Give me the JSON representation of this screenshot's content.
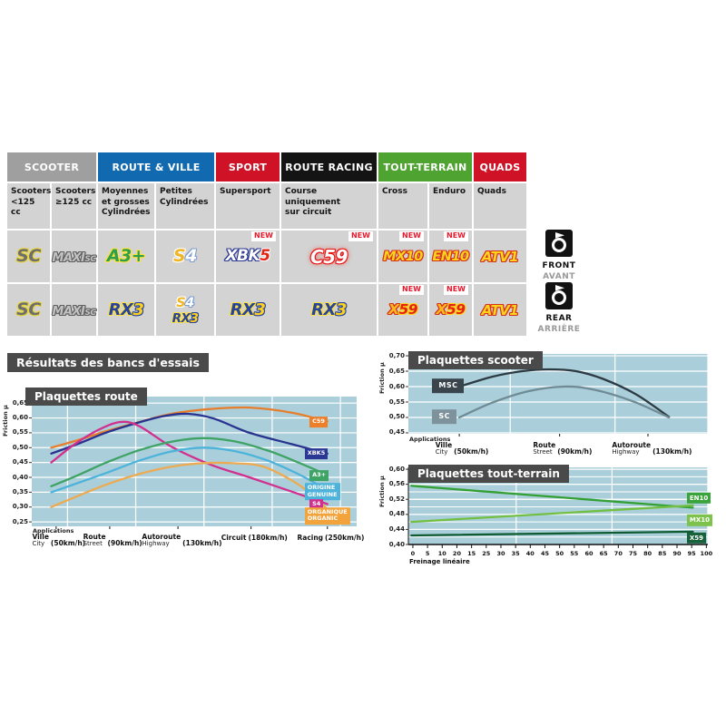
{
  "results_title": "Résultats des bancs d'essais",
  "side_labels": {
    "front": {
      "label": "FRONT",
      "sub": "AVANT"
    },
    "rear": {
      "label": "REAR",
      "sub": "ARRIÈRE"
    }
  },
  "table": {
    "new_label": "NEW",
    "categories": [
      {
        "label": "SCOOTER",
        "color": "#9f9f9f",
        "span": [
          0,
          1
        ]
      },
      {
        "label": "ROUTE & VILLE",
        "color": "#1169b0",
        "span": [
          2,
          3
        ]
      },
      {
        "label": "SPORT",
        "color": "#d01226",
        "span": [
          4
        ]
      },
      {
        "label": "ROUTE RACING",
        "color": "#141414",
        "span": [
          5
        ]
      },
      {
        "label": "TOUT-TERRAIN",
        "color": "#4ea331",
        "span": [
          6,
          7
        ]
      },
      {
        "label": "QUADS",
        "color": "#d01226",
        "span": [
          8
        ]
      }
    ],
    "subheaders": [
      "Scooters\n<125 cc",
      "Scooters\n≥125 cc",
      "Moyennes\net grosses\nCylindrées",
      "Petites\nCylindrées",
      "Supersport",
      "Course\nuniquement\nsur circuit",
      "Cross",
      "Enduro",
      "Quads"
    ],
    "badges": {
      "sc": {
        "parts": [
          {
            "t": "SC",
            "s": "sc"
          }
        ]
      },
      "maxisc": {
        "parts": [
          {
            "t": "MAXI",
            "s": "maxi"
          },
          {
            "t": "SC",
            "s": "maxi"
          }
        ]
      },
      "a3plus": {
        "parts": [
          {
            "t": "A3+",
            "s": "a3"
          }
        ]
      },
      "s4": {
        "parts": [
          {
            "t": "S",
            "s": "sgold"
          },
          {
            "t": "4",
            "s": "fourw"
          }
        ]
      },
      "xbk5": {
        "parts": [
          {
            "t": "XBK",
            "s": "wnavy"
          },
          {
            "t": "5",
            "s": "redw"
          }
        ]
      },
      "c59": {
        "parts": [
          {
            "t": "C59",
            "s": "wred"
          }
        ]
      },
      "mx10": {
        "parts": [
          {
            "t": "MX10",
            "s": "yr"
          }
        ]
      },
      "en10": {
        "parts": [
          {
            "t": "EN10",
            "s": "yr"
          }
        ]
      },
      "atv1": {
        "parts": [
          {
            "t": "ATV1",
            "s": "yr"
          }
        ]
      },
      "rx3": {
        "parts": [
          {
            "t": "RX",
            "s": "rxnavy"
          },
          {
            "t": "3",
            "s": "threey"
          }
        ]
      },
      "x59": {
        "parts": [
          {
            "t": "X",
            "s": "xy"
          },
          {
            "t": "59",
            "s": "fn"
          }
        ]
      }
    },
    "front_row": {
      "cells": [
        [
          "sc"
        ],
        [
          "maxisc"
        ],
        [
          "a3plus"
        ],
        [
          "s4"
        ],
        [
          "xbk5"
        ],
        [
          "c59"
        ],
        [
          "mx10"
        ],
        [
          "en10"
        ],
        [
          "atv1"
        ]
      ],
      "new": [
        false,
        false,
        false,
        false,
        true,
        true,
        true,
        true,
        false
      ]
    },
    "rear_row": {
      "cells": [
        [
          "sc"
        ],
        [
          "maxisc"
        ],
        [
          "rx3"
        ],
        [
          "s4",
          "rx3"
        ],
        [
          "rx3"
        ],
        [
          "rx3"
        ],
        [
          "x59"
        ],
        [
          "x59"
        ],
        [
          "atv1"
        ]
      ],
      "new": [
        false,
        false,
        false,
        false,
        false,
        false,
        true,
        true,
        false
      ]
    }
  },
  "chart_data": [
    {
      "id": "route",
      "type": "line",
      "title": "Plaquettes route",
      "ylabel": "Friction µ",
      "xlabel_header": "Applications",
      "plot_bg": "#abcfda",
      "ylim": [
        0.235,
        0.672
      ],
      "yticks": [
        {
          "v": 0.65,
          "label": "0,65"
        },
        {
          "v": 0.6,
          "label": "0,60"
        },
        {
          "v": 0.55,
          "label": "0,55"
        },
        {
          "v": 0.5,
          "label": "0,50"
        },
        {
          "v": 0.45,
          "label": "0,45"
        },
        {
          "v": 0.4,
          "label": "0,40"
        },
        {
          "v": 0.35,
          "label": "0,35"
        },
        {
          "v": 0.3,
          "label": "0,30"
        },
        {
          "v": 0.25,
          "label": "0,25"
        }
      ],
      "vgrid": [
        11,
        32,
        53,
        74,
        95
      ],
      "x_categories": [
        {
          "fr": "Ville",
          "en": "City",
          "speed": "(50km/h)",
          "x": 7.5
        },
        {
          "fr": "Route",
          "en": "Street",
          "speed": "(90km/h)",
          "x": 24
        },
        {
          "fr": "Autoroute",
          "en": "Highway",
          "speed": "(130km/h)",
          "x": 45
        },
        {
          "fr": "Circuit",
          "en": "",
          "speed": "(180km/h)",
          "x": 67.5
        },
        {
          "fr": "Racing",
          "en": "",
          "speed": "(250km/h)",
          "x": 91
        }
      ],
      "series": [
        {
          "name": "C59",
          "color": "#e67e2e",
          "points": [
            [
              6,
              0.5
            ],
            [
              15,
              0.528
            ],
            [
              23,
              0.556
            ],
            [
              33,
              0.586
            ],
            [
              43,
              0.614
            ],
            [
              55,
              0.63
            ],
            [
              67,
              0.635
            ],
            [
              80,
              0.618
            ],
            [
              91,
              0.588
            ]
          ]
        },
        {
          "name": "XBK5",
          "color": "#27338f",
          "points": [
            [
              6,
              0.48
            ],
            [
              15,
              0.516
            ],
            [
              23,
              0.551
            ],
            [
              33,
              0.585
            ],
            [
              41,
              0.607
            ],
            [
              48,
              0.614
            ],
            [
              56,
              0.598
            ],
            [
              67,
              0.55
            ],
            [
              80,
              0.512
            ],
            [
              91,
              0.48
            ]
          ]
        },
        {
          "name": "S4",
          "color": "#d1308f",
          "points": [
            [
              6,
              0.45
            ],
            [
              13,
              0.51
            ],
            [
              20,
              0.557
            ],
            [
              27,
              0.586
            ],
            [
              33,
              0.573
            ],
            [
              43,
              0.503
            ],
            [
              55,
              0.443
            ],
            [
              67,
              0.4
            ],
            [
              80,
              0.352
            ],
            [
              91,
              0.31
            ]
          ]
        },
        {
          "name": "A3+",
          "color": "#3fa366",
          "points": [
            [
              6,
              0.37
            ],
            [
              15,
              0.411
            ],
            [
              23,
              0.45
            ],
            [
              33,
              0.491
            ],
            [
              43,
              0.52
            ],
            [
              53,
              0.532
            ],
            [
              63,
              0.52
            ],
            [
              73,
              0.489
            ],
            [
              82,
              0.45
            ],
            [
              91,
              0.408
            ]
          ]
        },
        {
          "name": "ORIGINE GENUINE",
          "color": "#4db3da",
          "points": [
            [
              6,
              0.35
            ],
            [
              15,
              0.384
            ],
            [
              23,
              0.415
            ],
            [
              33,
              0.456
            ],
            [
              43,
              0.487
            ],
            [
              53,
              0.5
            ],
            [
              63,
              0.487
            ],
            [
              73,
              0.455
            ],
            [
              82,
              0.411
            ],
            [
              91,
              0.358
            ]
          ]
        },
        {
          "name": "ORGANIQUE ORGANIC",
          "color": "#edaa52",
          "points": [
            [
              6,
              0.3
            ],
            [
              15,
              0.341
            ],
            [
              23,
              0.376
            ],
            [
              33,
              0.411
            ],
            [
              43,
              0.436
            ],
            [
              53,
              0.448
            ],
            [
              63,
              0.447
            ],
            [
              71,
              0.437
            ],
            [
              80,
              0.39
            ],
            [
              86,
              0.344
            ],
            [
              91,
              0.292
            ]
          ]
        }
      ],
      "legend": [
        {
          "label": "C59",
          "color": "#ed7f2b",
          "x": 85.5,
          "v": 0.585
        },
        {
          "label": "XBK5",
          "color": "#2a3793",
          "x": 84,
          "v": 0.479
        },
        {
          "label": "A3+",
          "color": "#3fa366",
          "x": 85.5,
          "v": 0.406
        },
        {
          "label": "ORIGINE\nGENUINE",
          "color": "#4db3da",
          "x": 84,
          "v": 0.352
        },
        {
          "label": "S4",
          "color": "#d1308f",
          "x": 85.5,
          "v": 0.308
        },
        {
          "label": "ORGANIQUE\nORGANIC",
          "color": "#f2a33c",
          "x": 84,
          "v": 0.27
        }
      ]
    },
    {
      "id": "scooter",
      "type": "line",
      "title": "Plaquettes scooter",
      "ylabel": "Friction µ",
      "xlabel_header": "Applications",
      "plot_bg": "#abcfda",
      "ylim": [
        0.447,
        0.706
      ],
      "yticks": [
        {
          "v": 0.7,
          "label": "0,70"
        },
        {
          "v": 0.65,
          "label": "0,65"
        },
        {
          "v": 0.6,
          "label": "0,60"
        },
        {
          "v": 0.55,
          "label": "0,55"
        },
        {
          "v": 0.5,
          "label": "0,50"
        },
        {
          "v": 0.45,
          "label": "0,45"
        }
      ],
      "vgrid": [
        34,
        69,
        100
      ],
      "x_categories": [
        {
          "fr": "Ville",
          "en": "City",
          "speed": "(50km/h)",
          "x": 17
        },
        {
          "fr": "Route",
          "en": "Street",
          "speed": "(90km/h)",
          "x": 50.5
        },
        {
          "fr": "Autoroute",
          "en": "Highway",
          "speed": "(130km/h)",
          "x": 80
        }
      ],
      "series": [
        {
          "name": "MSC",
          "color": "#2c3b43",
          "points": [
            [
              17,
              0.6
            ],
            [
              28,
              0.632
            ],
            [
              38,
              0.65
            ],
            [
              47,
              0.656
            ],
            [
              56,
              0.65
            ],
            [
              65,
              0.625
            ],
            [
              76,
              0.575
            ],
            [
              87,
              0.502
            ]
          ]
        },
        {
          "name": "SC",
          "color": "#6f8b95",
          "points": [
            [
              17,
              0.5
            ],
            [
              28,
              0.548
            ],
            [
              40,
              0.585
            ],
            [
              52,
              0.6
            ],
            [
              62,
              0.59
            ],
            [
              75,
              0.552
            ],
            [
              87,
              0.5
            ]
          ]
        }
      ],
      "legend": [
        {
          "label": "MSC",
          "color": "#3a444c",
          "x": 8,
          "v": 0.602
        },
        {
          "label": "SC",
          "color": "#7e929b",
          "x": 8,
          "v": 0.502
        }
      ]
    },
    {
      "id": "tt",
      "type": "line",
      "title": "Plaquettes tout-terrain",
      "ylabel": "Friction µ",
      "xlabel": "Freinage linéaire",
      "plot_bg": "#abcfda",
      "ylim": [
        0.4,
        0.605
      ],
      "yticks": [
        {
          "v": 0.6,
          "label": "0,60"
        },
        {
          "v": 0.56,
          "label": "0,56"
        },
        {
          "v": 0.52,
          "label": "0,52"
        },
        {
          "v": 0.48,
          "label": "0,48"
        },
        {
          "v": 0.44,
          "label": "0,44"
        },
        {
          "v": 0.4,
          "label": "0,40"
        }
      ],
      "minor_step": 0.02,
      "vgrid": [
        36,
        68,
        100
      ],
      "xticks": [
        "0",
        "5",
        "10",
        "20",
        "15",
        "25",
        "30",
        "35",
        "40",
        "45",
        "50",
        "55",
        "60",
        "65",
        "70",
        "75",
        "80",
        "85",
        "90",
        "95",
        "100"
      ],
      "series": [
        {
          "name": "EN10",
          "color": "#33a035",
          "points": [
            [
              1,
              0.556
            ],
            [
              95,
              0.498
            ]
          ]
        },
        {
          "name": "MX10",
          "color": "#72bf44",
          "points": [
            [
              1,
              0.46
            ],
            [
              95,
              0.504
            ]
          ]
        },
        {
          "name": "X59",
          "color": "#0f5c33",
          "points": [
            [
              1,
              0.424
            ],
            [
              95,
              0.434
            ]
          ]
        }
      ],
      "legend": [
        {
          "label": "EN10",
          "color": "#3aa43c",
          "x": 93,
          "v": 0.524
        },
        {
          "label": "MX10",
          "color": "#7cc24b",
          "x": 93,
          "v": 0.464
        },
        {
          "label": "X59",
          "color": "#17613b",
          "x": 93,
          "v": 0.417
        }
      ]
    }
  ]
}
